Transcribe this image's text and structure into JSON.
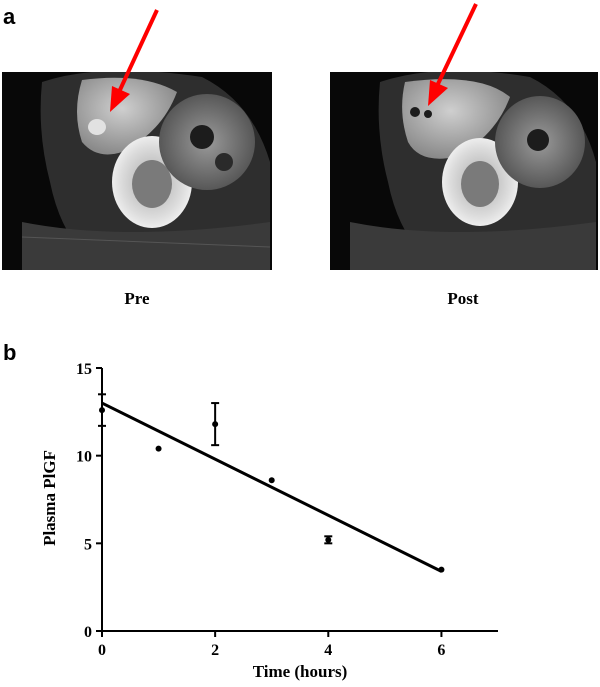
{
  "panels": {
    "a": {
      "letter": "a",
      "images": [
        {
          "caption": "Pre",
          "arrow_color": "#ff0000"
        },
        {
          "caption": "Post",
          "arrow_color": "#ff0000"
        }
      ]
    },
    "b": {
      "letter": "b"
    }
  },
  "chart_data": {
    "type": "scatter",
    "xlabel": "Time (hours)",
    "ylabel": "Plasma PlGF",
    "xlim": [
      0,
      7
    ],
    "ylim": [
      0,
      15
    ],
    "xticks": [
      0,
      2,
      4,
      6
    ],
    "yticks": [
      0,
      5,
      10,
      15
    ],
    "grid": false,
    "points": [
      {
        "x": 0,
        "y": 12.6,
        "err": 0.9
      },
      {
        "x": 1,
        "y": 10.4,
        "err": 0
      },
      {
        "x": 2,
        "y": 11.8,
        "err": 1.2
      },
      {
        "x": 3,
        "y": 8.6,
        "err": 0
      },
      {
        "x": 4,
        "y": 5.2,
        "err": 0.2
      },
      {
        "x": 6,
        "y": 3.5,
        "err": 0
      }
    ],
    "fit_line": {
      "x": [
        0,
        6
      ],
      "y": [
        13.0,
        3.4
      ]
    },
    "colors": {
      "markers": "#000000",
      "line": "#000000"
    }
  }
}
